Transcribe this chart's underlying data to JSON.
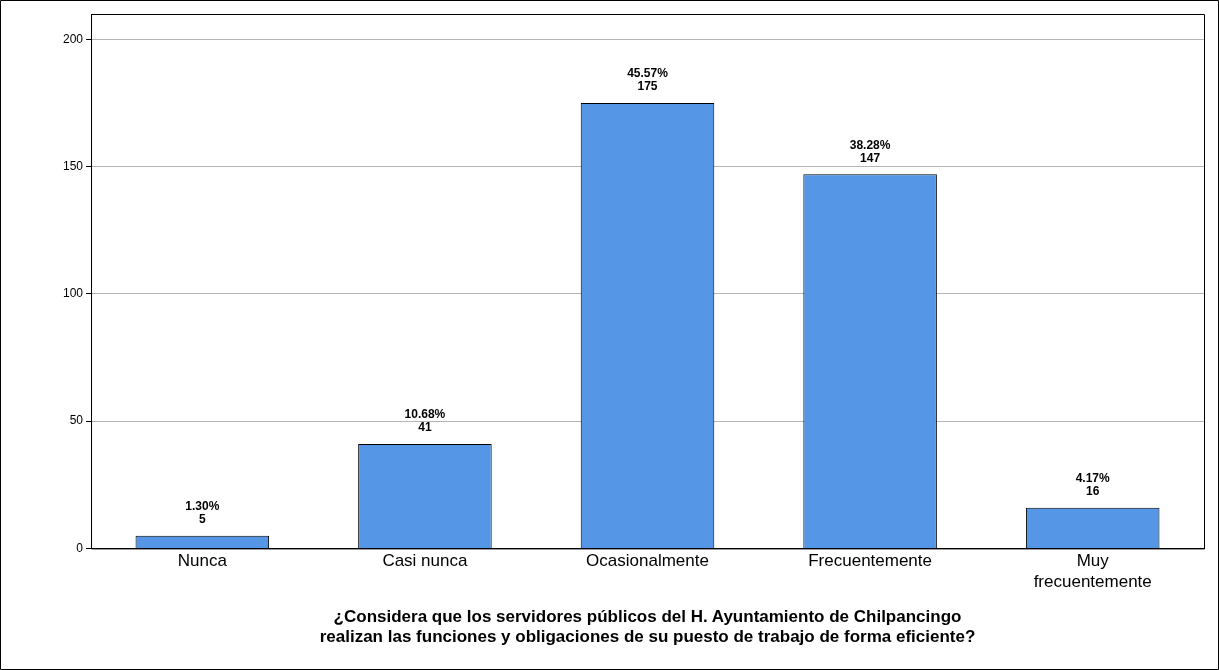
{
  "chart_data": {
    "type": "bar",
    "xlabel": "¿Considera que los servidores públicos del H. Ayuntamiento de Chilpancingo realizan las funciones y obligaciones de su puesto de trabajo de forma eficiente?",
    "categories": [
      "Nunca",
      "Casi nunca",
      "Ocasionalmente",
      "Frecuentemente",
      "Muy frecuentemente"
    ],
    "values": [
      5,
      41,
      175,
      147,
      16
    ],
    "value_labels": [
      "1.30%\n5",
      "10.68%\n41",
      "45.57%\n175",
      "38.28%\n147",
      "4.17%\n16"
    ],
    "color": "#5596e6",
    "ylim": [
      0,
      210
    ],
    "yticks": [
      0,
      50,
      100,
      150,
      200
    ],
    "grid": "y",
    "legend": false
  }
}
